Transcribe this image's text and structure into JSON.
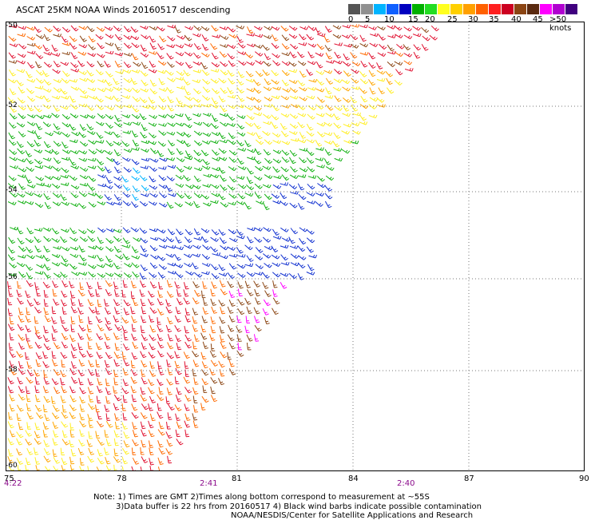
{
  "title": "ASCAT 25KM NOAA Winds 20160517 descending",
  "legend": {
    "ticks": [
      "0",
      "5",
      "10",
      "15",
      "20",
      "25",
      "30",
      "35",
      "40",
      "45",
      ">50 knots"
    ],
    "colors": [
      "#555555",
      "#909090",
      "#00b4ff",
      "#1060ff",
      "#0000c0",
      "#00b000",
      "#22dd22",
      "#ffff20",
      "#ffd000",
      "#ffa000",
      "#ff6000",
      "#ff2020",
      "#cc0020",
      "#8b4513",
      "#5a2a10",
      "#ff00ff",
      "#b000d0",
      "#40007f"
    ]
  },
  "lat_labels": [
    "-50",
    "-52",
    "-54",
    "-56",
    "-58",
    "-60"
  ],
  "lon_labels": [
    "75",
    "78",
    "81",
    "84",
    "87",
    "90"
  ],
  "time_labels": [
    "4:22",
    "2:41",
    "2:40"
  ],
  "notes": {
    "line1": "Note: 1) Times are GMT 2)Times along bottom correspond to measurement at ~55S",
    "line2": "3)Data buffer is 22 hrs from 20160517 4) Black wind barbs indicate possible contamination",
    "line3": "NOAA/NESDIS/Center for Satellite Applications and Research"
  },
  "map": {
    "grid_style": "dotted",
    "speed_colors": {
      "light": "#00b4ff",
      "blue": "#1030d0",
      "green": "#10b010",
      "yellow": "#ffee22",
      "orange": "#ffa500",
      "darkorange": "#ff6a00",
      "red": "#e01030",
      "brown": "#8b4513",
      "magenta": "#ff00ff",
      "black": "#000000"
    }
  }
}
